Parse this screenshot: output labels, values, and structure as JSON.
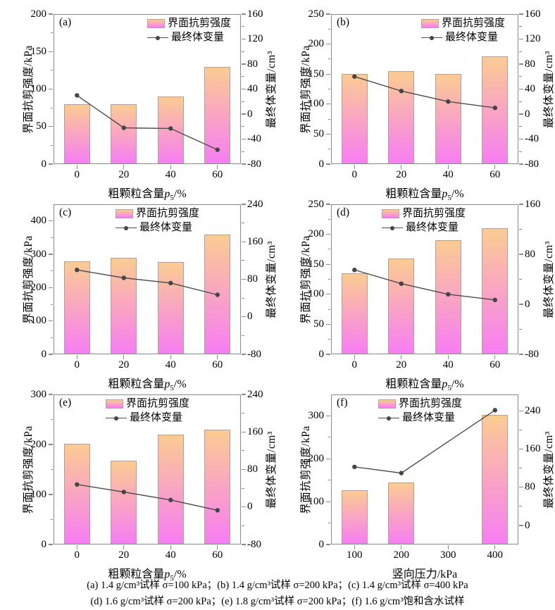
{
  "colors": {
    "bar_top": "#fbcc92",
    "bar_bottom": "#f77df5",
    "bar_border": "#b59d9b",
    "line": "#4d4d4d",
    "frame": "#8a8a8a",
    "text": "#000000"
  },
  "caption": {
    "line1": "(a) 1.4 g/cm³试样 σ=100 kPa；(b) 1.4 g/cm³试样 σ=200 kPa；(c) 1.4 g/cm³试样 σ=400 kPa",
    "line2": "(d) 1.6 g/cm³试样 σ=200 kPa；(e) 1.8 g/cm³试样 σ=200 kPa；(f) 1.6 g/cm³饱和含水试样"
  },
  "chart_data": [
    {
      "id": "a",
      "type": "bar",
      "panel_label": "(a)",
      "categories": [
        "0",
        "20",
        "40",
        "60"
      ],
      "xlabel": {
        "prefix": "粗颗粒含量",
        "var": "p",
        "sub": "5",
        "unit": "/%"
      },
      "left_ylabel": "界面抗剪强度/kPa",
      "right_ylabel": "最终体变量/cm³",
      "legend": {
        "bar": "界面抗剪强度",
        "line": "最终体变量"
      },
      "bars": [
        80,
        80,
        90,
        130
      ],
      "line": [
        30,
        -22,
        -23,
        -57
      ],
      "left_ylim": [
        0,
        200
      ],
      "left_ticks": [
        0,
        50,
        100,
        150,
        200
      ],
      "right_ylim": [
        -80,
        160
      ],
      "right_ticks": [
        -80,
        -40,
        0,
        40,
        80,
        120,
        160
      ],
      "legend_x": 0.5
    },
    {
      "id": "b",
      "type": "bar",
      "panel_label": "(b)",
      "categories": [
        "0",
        "20",
        "40",
        "60"
      ],
      "xlabel": {
        "prefix": "粗颗粒含量",
        "var": "p",
        "sub": "5",
        "unit": "/%"
      },
      "left_ylabel": "界面抗剪强度/kPa",
      "right_ylabel": "最终体变量/cm³",
      "legend": {
        "bar": "界面抗剪强度",
        "line": "最终体变量"
      },
      "bars": [
        150,
        155,
        150,
        180
      ],
      "line": [
        60,
        37,
        20,
        10
      ],
      "left_ylim": [
        0,
        250
      ],
      "left_ticks": [
        0,
        50,
        100,
        150,
        200,
        250
      ],
      "right_ylim": [
        -80,
        160
      ],
      "right_ticks": [
        -80,
        -40,
        0,
        40,
        80,
        120,
        160
      ],
      "legend_x": 0.48
    },
    {
      "id": "c",
      "type": "bar",
      "panel_label": "(c)",
      "categories": [
        "0",
        "20",
        "40",
        "60"
      ],
      "xlabel": {
        "prefix": "粗颗粒含量",
        "var": "p",
        "sub": "5",
        "unit": "/%"
      },
      "left_ylabel": "界面抗剪强度/kPa",
      "right_ylabel": "最终体变量/cm³",
      "legend": {
        "bar": "界面抗剪强度",
        "line": "最终体变量"
      },
      "bars": [
        280,
        290,
        277,
        360
      ],
      "line": [
        100,
        83,
        72,
        47
      ],
      "left_ylim": [
        0,
        450
      ],
      "left_ticks": [
        0,
        100,
        200,
        300,
        400
      ],
      "right_ylim": [
        -80,
        240
      ],
      "right_ticks": [
        -80,
        0,
        80,
        160,
        240
      ],
      "legend_x": 0.33
    },
    {
      "id": "d",
      "type": "bar",
      "panel_label": "(d)",
      "categories": [
        "0",
        "20",
        "40",
        "60"
      ],
      "xlabel": {
        "prefix": "粗颗粒含量",
        "var": "p",
        "sub": "5",
        "unit": "/%"
      },
      "left_ylabel": "界面抗剪强度/kPa",
      "right_ylabel": "最终体变量/cm³",
      "legend": {
        "bar": "界面抗剪强度",
        "line": "最终体变量"
      },
      "bars": [
        135,
        160,
        190,
        210
      ],
      "line": [
        55,
        33,
        16,
        7
      ],
      "left_ylim": [
        0,
        250
      ],
      "left_ticks": [
        0,
        50,
        100,
        150,
        200,
        250
      ],
      "right_ylim": [
        -80,
        160
      ],
      "right_ticks": [
        -80,
        0,
        80,
        160
      ],
      "legend_x": 0.27
    },
    {
      "id": "e",
      "type": "bar",
      "panel_label": "(e)",
      "categories": [
        "0",
        "20",
        "40",
        "60"
      ],
      "xlabel": {
        "prefix": "粗颗粒含量",
        "var": "p",
        "sub": "5",
        "unit": "/%"
      },
      "left_ylabel": "界面抗剪强度/kPa",
      "right_ylabel": "最终体变量/cm³",
      "legend": {
        "bar": "界面抗剪强度",
        "line": "最终体变量"
      },
      "bars": [
        202,
        168,
        220,
        230
      ],
      "line": [
        48,
        32,
        15,
        -7
      ],
      "left_ylim": [
        0,
        300
      ],
      "left_ticks": [
        0,
        100,
        200,
        300
      ],
      "right_ylim": [
        -80,
        240
      ],
      "right_ticks": [
        -80,
        0,
        80,
        160,
        240
      ],
      "legend_x": 0.28
    },
    {
      "id": "f",
      "type": "bar",
      "panel_label": "(f)",
      "categories": [
        "100",
        "200",
        "300",
        "400"
      ],
      "xlabel": {
        "prefix": "竖向压力",
        "var": "",
        "sub": "",
        "unit": "/kPa"
      },
      "left_ylabel": "界面抗剪强度/kPa",
      "right_ylabel": "最终体变量/cm³",
      "legend": {
        "bar": "界面抗剪强度",
        "line": "最终体变量"
      },
      "bars": [
        127,
        145,
        null,
        302
      ],
      "line": [
        123,
        110,
        null,
        242
      ],
      "left_ylim": [
        0,
        350
      ],
      "left_ticks": [
        0,
        100,
        200,
        300
      ],
      "right_ylim": [
        -40,
        275
      ],
      "right_ticks": [
        0,
        80,
        160,
        240
      ],
      "legend_x": 0.25
    }
  ]
}
